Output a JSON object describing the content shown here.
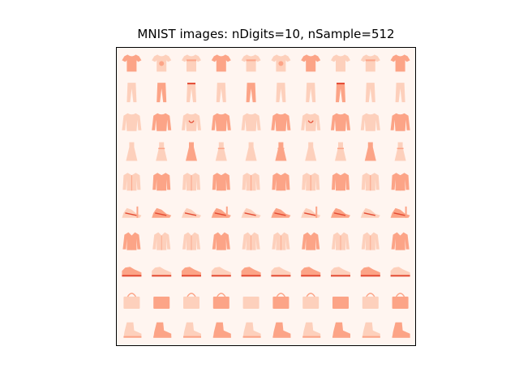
{
  "title": "MNIST images: nDigits=10, nSample=512",
  "grid": {
    "rows": 10,
    "cols": 10,
    "colormap": "Reds",
    "background_color": "#fff5f0",
    "ink_light": "#fdd0bc",
    "ink_mid": "#fca487",
    "ink_dark": "#e34a33",
    "row_items": [
      "tshirt-icon",
      "trouser-icon",
      "pullover-icon",
      "dress-icon",
      "coat-icon",
      "sandal-icon",
      "shirt-icon",
      "sneaker-icon",
      "bag-icon",
      "ankle-boot-icon"
    ]
  }
}
